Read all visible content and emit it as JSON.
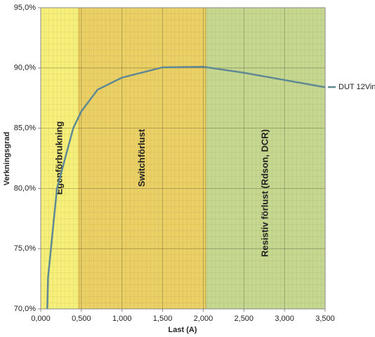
{
  "chart_data": {
    "type": "line",
    "x_label": "Last (A)",
    "y_label": "Verkningsgrad",
    "xlim": [
      0,
      3.5
    ],
    "xticks": [
      {
        "value": 0,
        "label": "0,000"
      },
      {
        "value": 0.5,
        "label": "0,500"
      },
      {
        "value": 1,
        "label": "1,000"
      },
      {
        "value": 1.5,
        "label": "1,500"
      },
      {
        "value": 2,
        "label": "2,000"
      },
      {
        "value": 2.5,
        "label": "2,500"
      },
      {
        "value": 3,
        "label": "3,000"
      },
      {
        "value": 3.5,
        "label": "3,500"
      }
    ],
    "ylim": [
      70,
      95
    ],
    "yticks": [
      {
        "value": 70,
        "label": "70,0%"
      },
      {
        "value": 75,
        "label": "75,0%"
      },
      {
        "value": 80,
        "label": "80,0%"
      },
      {
        "value": 85,
        "label": "85,0%"
      },
      {
        "value": 90,
        "label": "90,0%"
      },
      {
        "value": 95,
        "label": "95,0%"
      }
    ],
    "grid": true,
    "legend": "right",
    "regions": [
      {
        "label": "Egenförbrukning",
        "start": 0,
        "end": 0.47,
        "color": "#f6ef7a"
      },
      {
        "label": "Switchförlust",
        "start": 0.47,
        "end": 2.03,
        "color": "#ebd066"
      },
      {
        "label": "Resistiv förlust (Rdson, DCR)",
        "start": 2.03,
        "end": 3.5,
        "color": "#c6d88f"
      }
    ],
    "x": [
      0.08,
      0.09,
      0.2,
      0.4,
      0.5,
      0.7,
      1.0,
      1.5,
      2.0,
      2.5,
      3.0,
      3.5
    ],
    "series": [
      {
        "name": "DUT 12Vin",
        "color": "#5f8a93",
        "values": [
          70,
          72.6,
          80,
          85,
          86.4,
          88.2,
          89.2,
          90.05,
          90.1,
          89.6,
          89.0,
          88.4
        ]
      }
    ]
  }
}
